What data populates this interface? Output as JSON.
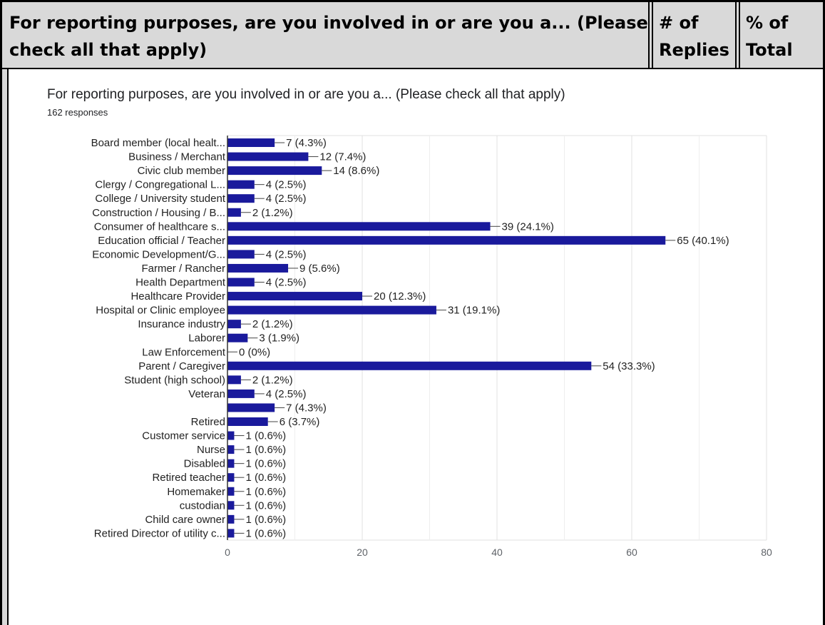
{
  "table_header": {
    "question": "For reporting purposes, are you involved in or are you a... (Please check all that apply)",
    "question_line1": "For reporting purposes, are you involved in or are you a... (Please",
    "question_line2": "check all that apply)",
    "replies_line1": "# of",
    "replies_line2": "Replies",
    "total_line1": "% of",
    "total_line2": "Total"
  },
  "chart_title": "For reporting purposes, are you involved in or are you a... (Please check all that apply)",
  "chart_subtitle": "162 responses",
  "chart_data": {
    "type": "bar",
    "orientation": "horizontal",
    "title": "For reporting purposes, are you involved in or are you a... (Please check all that apply)",
    "subtitle": "162 responses",
    "xlabel": "",
    "ylabel": "",
    "xlim": [
      0,
      80
    ],
    "x_ticks": [
      0,
      20,
      40,
      60,
      80
    ],
    "grid": "vertical",
    "bar_color": "#1a1a9c",
    "categories": [
      "Board member (local healt...",
      "Business / Merchant",
      "Civic club member",
      "Clergy / Congregational L...",
      "College / University student",
      "Construction / Housing / B...",
      "Consumer of healthcare s...",
      "Education official / Teacher",
      "Economic Development/G...",
      "Farmer / Rancher",
      "Health Department",
      "Healthcare Provider",
      "Hospital or Clinic employee",
      "Insurance industry",
      "Laborer",
      "Law Enforcement",
      "Parent / Caregiver",
      "Student (high school)",
      "Veteran",
      "",
      "Retired",
      "Customer service",
      "Nurse",
      "Disabled",
      "Retired teacher",
      "Homemaker",
      "custodian",
      "Child care owner",
      "Retired Director of utility c..."
    ],
    "values": [
      7,
      12,
      14,
      4,
      4,
      2,
      39,
      65,
      4,
      9,
      4,
      20,
      31,
      2,
      3,
      0,
      54,
      2,
      4,
      7,
      6,
      1,
      1,
      1,
      1,
      1,
      1,
      1,
      1
    ],
    "data_labels": [
      "7 (4.3%)",
      "12 (7.4%)",
      "14 (8.6%)",
      "4 (2.5%)",
      "4 (2.5%)",
      "2 (1.2%)",
      "39 (24.1%)",
      "65 (40.1%)",
      "4 (2.5%)",
      "9 (5.6%)",
      "4 (2.5%)",
      "20 (12.3%)",
      "31 (19.1%)",
      "2 (1.2%)",
      "3 (1.9%)",
      "0 (0%)",
      "54 (33.3%)",
      "2 (1.2%)",
      "4 (2.5%)",
      "7 (4.3%)",
      "6 (3.7%)",
      "1 (0.6%)",
      "1 (0.6%)",
      "1 (0.6%)",
      "1 (0.6%)",
      "1 (0.6%)",
      "1 (0.6%)",
      "1 (0.6%)",
      "1 (0.6%)"
    ]
  }
}
